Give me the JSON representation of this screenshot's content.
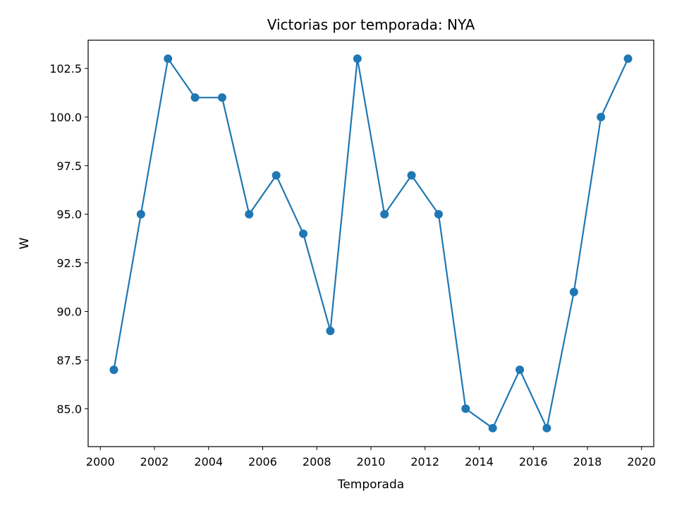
{
  "chart_data": {
    "type": "line",
    "title": "Victorias por temporada: NYA",
    "xlabel": "Temporada",
    "ylabel": "W",
    "x": [
      2000.5,
      2001.5,
      2002.5,
      2003.5,
      2004.5,
      2005.5,
      2006.5,
      2007.5,
      2008.5,
      2009.5,
      2010.5,
      2011.5,
      2012.5,
      2013.5,
      2014.5,
      2015.5,
      2016.5,
      2017.5,
      2018.5,
      2019.5
    ],
    "series": [
      {
        "values": [
          87,
          95,
          103,
          101,
          101,
          95,
          97,
          94,
          89,
          103,
          95,
          97,
          95,
          85,
          84,
          87,
          84,
          91,
          100,
          103
        ]
      }
    ],
    "xlim": [
      1999.55,
      2020.45
    ],
    "ylim": [
      83.05,
      103.95
    ],
    "xticks": [
      "2000",
      "2002",
      "2004",
      "2006",
      "2008",
      "2010",
      "2012",
      "2014",
      "2016",
      "2018",
      "2020"
    ],
    "yticks": [
      "85.0",
      "87.5",
      "90.0",
      "92.5",
      "95.0",
      "97.5",
      "100.0",
      "102.5"
    ],
    "line_color": "#1f77b4",
    "markers": "circle",
    "grid": false
  }
}
